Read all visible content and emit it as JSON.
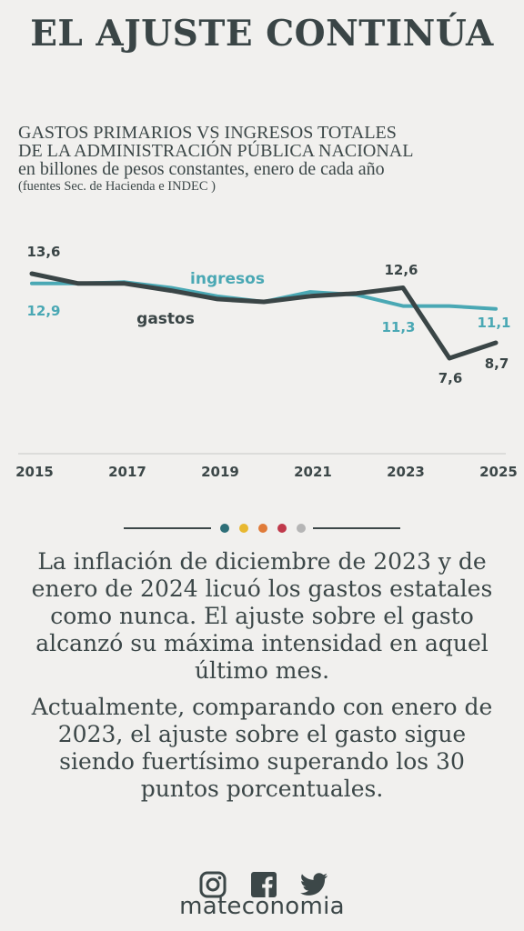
{
  "headline": "EL AJUSTE CONTINÚA",
  "chart_title": {
    "line1": "GASTOS PRIMARIOS VS INGRESOS TOTALES",
    "line2": "DE LA ADMINISTRACIÓN PÚBLICA NACIONAL",
    "subtitle": "en billones de pesos constantes, enero de cada año",
    "source": "(fuentes Sec. de Hacienda e INDEC )"
  },
  "chart_data": {
    "type": "line",
    "x": [
      2015,
      2016,
      2017,
      2018,
      2019,
      2020,
      2021,
      2022,
      2023,
      2024,
      2025
    ],
    "x_tick_labels": [
      "2015",
      "2017",
      "2019",
      "2021",
      "2023",
      "2025"
    ],
    "series": [
      {
        "name": "ingresos",
        "color": "#4aa8b4",
        "values": [
          12.9,
          12.9,
          13.0,
          12.6,
          12.0,
          11.6,
          12.3,
          12.1,
          11.3,
          11.3,
          11.1
        ]
      },
      {
        "name": "gastos",
        "color": "#3a4546",
        "values": [
          13.6,
          12.9,
          12.9,
          12.4,
          11.8,
          11.6,
          12.0,
          12.2,
          12.6,
          7.6,
          8.7
        ]
      }
    ],
    "data_labels": [
      {
        "series": "gastos",
        "x": 2015,
        "text": "13,6"
      },
      {
        "series": "ingresos",
        "x": 2015,
        "text": "12,9"
      },
      {
        "series": "gastos",
        "x": 2023,
        "text": "12,6"
      },
      {
        "series": "ingresos",
        "x": 2023,
        "text": "11,3"
      },
      {
        "series": "ingresos",
        "x": 2025,
        "text": "11,1"
      },
      {
        "series": "gastos",
        "x": 2024,
        "text": "7,6"
      },
      {
        "series": "gastos",
        "x": 2025,
        "text": "8,7"
      }
    ],
    "ylim": [
      6,
      15
    ],
    "grid": false,
    "legend": "inline labels"
  },
  "divider_dots": [
    "#2e6f78",
    "#e8b830",
    "#e07b39",
    "#c0394b",
    "#b5b5b5"
  ],
  "paragraphs": [
    "La inflación de diciembre de 2023 y de enero de 2024 licuó los gastos estatales como nunca. El ajuste sobre el gasto alcanzó su máxima intensidad en aquel último mes.",
    "Actualmente, comparando con enero de 2023, el ajuste sobre el gasto sigue siendo fuertísimo superando los 30 puntos porcentuales."
  ],
  "social_icons": [
    "instagram-icon",
    "facebook-icon",
    "twitter-icon"
  ],
  "brand": "mateconomia"
}
